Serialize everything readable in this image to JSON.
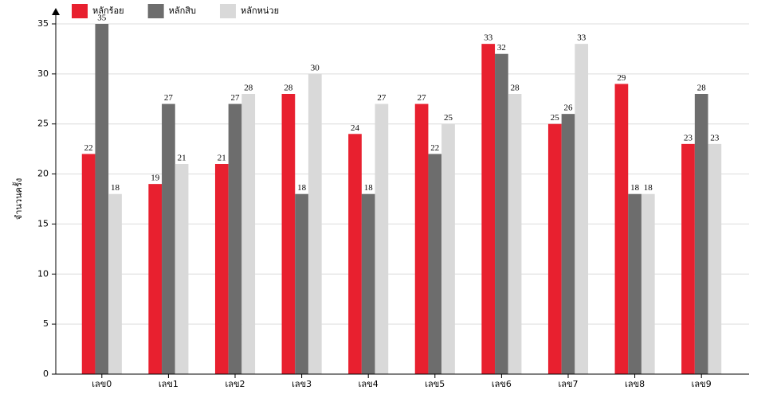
{
  "chart_data": {
    "type": "bar",
    "y_label": "จำนวนครั้ง",
    "categories": [
      "เลข0",
      "เลข1",
      "เลข2",
      "เลข3",
      "เลข4",
      "เลข5",
      "เลข6",
      "เลข7",
      "เลข8",
      "เลข9"
    ],
    "series": [
      {
        "name": "หลักร้อย",
        "color": "#e8202f",
        "values": [
          22,
          19,
          21,
          28,
          24,
          27,
          33,
          25,
          29,
          23
        ]
      },
      {
        "name": "หลักสิบ",
        "color": "#6d6d6d",
        "values": [
          35,
          27,
          27,
          18,
          18,
          22,
          32,
          26,
          18,
          28
        ]
      },
      {
        "name": "หลักหน่วย",
        "color": "#d9d9d9",
        "values": [
          18,
          21,
          28,
          30,
          27,
          25,
          28,
          33,
          18,
          23
        ]
      }
    ],
    "ylim": [
      0,
      35
    ],
    "yticks": [
      0,
      5,
      10,
      15,
      20,
      25,
      30,
      35
    ],
    "grid": true,
    "legend": "top-left"
  }
}
